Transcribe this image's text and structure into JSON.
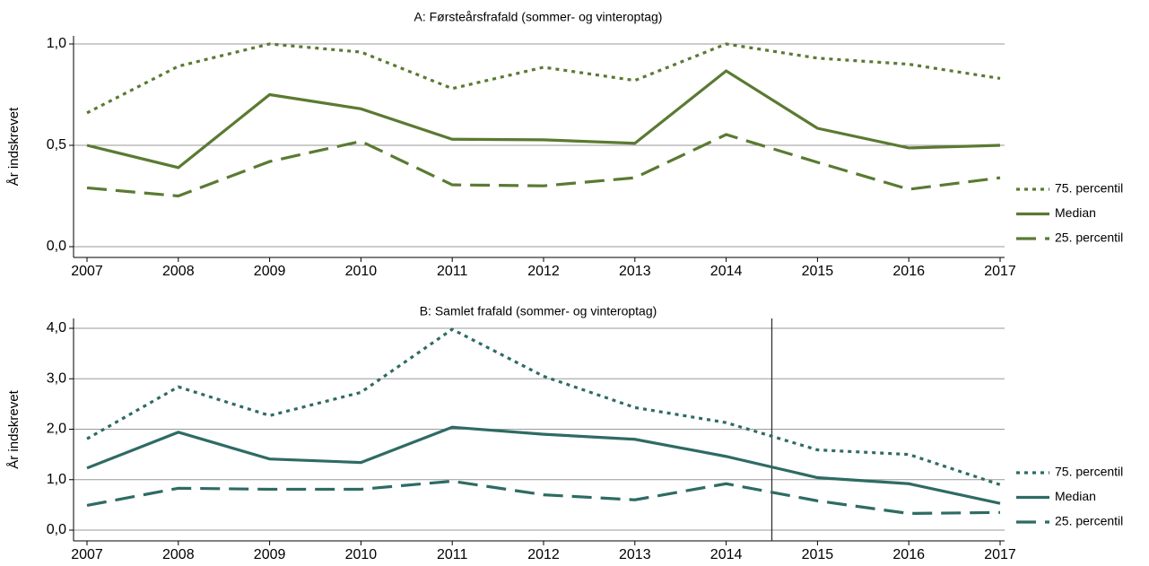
{
  "chart_data": [
    {
      "type": "line",
      "title": "A: Førsteårsfrafald (sommer- og vinteroptag)",
      "ylabel": "År indskrevet",
      "x": [
        2007,
        2008,
        2009,
        2010,
        2011,
        2012,
        2013,
        2014,
        2015,
        2016,
        2017
      ],
      "xlim": [
        2007,
        2017
      ],
      "xticks": [
        2007,
        2008,
        2009,
        2010,
        2011,
        2012,
        2013,
        2014,
        2015,
        2016,
        2017
      ],
      "ylim": [
        0,
        1.0
      ],
      "yticks": [
        {
          "value": 0,
          "label": "0,0"
        },
        {
          "value": 0.5,
          "label": "0,5"
        },
        {
          "value": 1.0,
          "label": "1,0"
        }
      ],
      "grid": true,
      "legend": "right",
      "series": [
        {
          "name": "75. percentil",
          "color": "#5a7a32",
          "dash": "dot",
          "values": [
            0.66,
            0.89,
            1.0,
            0.96,
            0.78,
            0.885,
            0.82,
            1.0,
            0.93,
            0.9,
            0.83
          ]
        },
        {
          "name": "Median",
          "color": "#5a7a32",
          "dash": "solid",
          "values": [
            0.5,
            0.39,
            0.75,
            0.68,
            0.53,
            0.527,
            0.51,
            0.867,
            0.584,
            0.487,
            0.5
          ]
        },
        {
          "name": "25. percentil",
          "color": "#5a7a32",
          "dash": "dash",
          "values": [
            0.29,
            0.25,
            0.42,
            0.52,
            0.305,
            0.3,
            0.34,
            0.553,
            0.416,
            0.283,
            0.34
          ]
        }
      ]
    },
    {
      "type": "line",
      "title": "B: Samlet frafald (sommer- og vinteroptag)",
      "ylabel": "År indskrevet",
      "x": [
        2007,
        2008,
        2009,
        2010,
        2011,
        2012,
        2013,
        2014,
        2015,
        2016,
        2017
      ],
      "xlim": [
        2007,
        2017
      ],
      "xticks": [
        2007,
        2008,
        2009,
        2010,
        2011,
        2012,
        2013,
        2014,
        2015,
        2016,
        2017
      ],
      "ylim": [
        0,
        4.0
      ],
      "yticks": [
        {
          "value": 0,
          "label": "0,0"
        },
        {
          "value": 1.0,
          "label": "1,0"
        },
        {
          "value": 2.0,
          "label": "2,0"
        },
        {
          "value": 3.0,
          "label": "3,0"
        },
        {
          "value": 4.0,
          "label": "4,0"
        }
      ],
      "grid": true,
      "legend": "right",
      "vline": 2014.5,
      "series": [
        {
          "name": "75. percentil",
          "color": "#2e6b64",
          "dash": "dot",
          "values": [
            1.81,
            2.84,
            2.27,
            2.73,
            3.98,
            3.05,
            2.43,
            2.13,
            1.59,
            1.5,
            0.9
          ]
        },
        {
          "name": "Median",
          "color": "#2e6b64",
          "dash": "solid",
          "values": [
            1.23,
            1.94,
            1.41,
            1.34,
            2.04,
            1.9,
            1.8,
            1.46,
            1.04,
            0.92,
            0.53
          ]
        },
        {
          "name": "25. percentil",
          "color": "#2e6b64",
          "dash": "dash",
          "values": [
            0.49,
            0.83,
            0.81,
            0.81,
            0.97,
            0.7,
            0.6,
            0.92,
            0.58,
            0.33,
            0.35
          ]
        }
      ]
    }
  ]
}
